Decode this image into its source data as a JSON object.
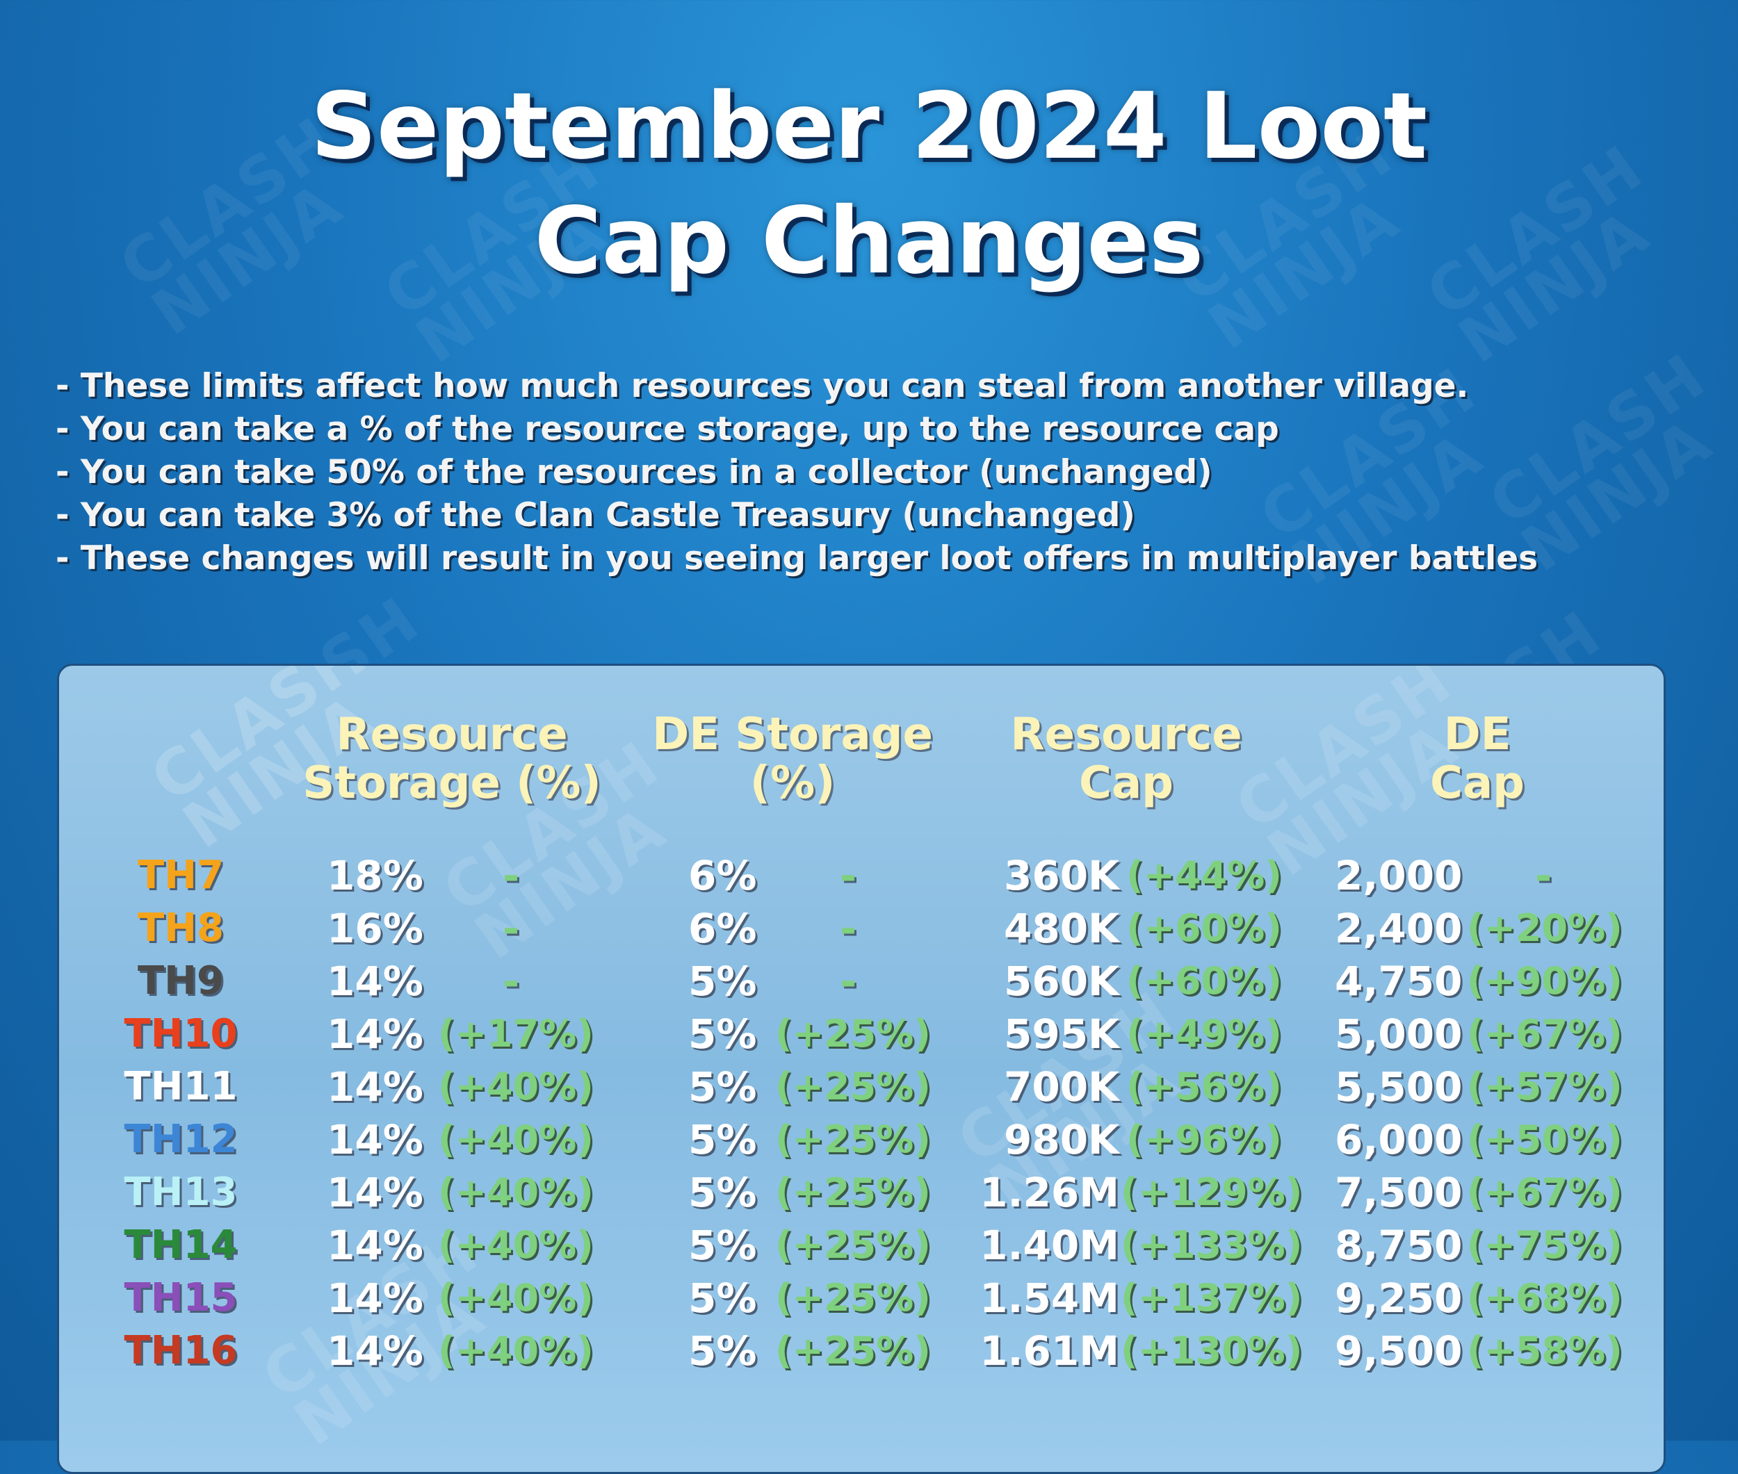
{
  "title": {
    "line1": "September 2024 Loot",
    "line2": "Cap Changes"
  },
  "watermark_text": "CLASH NINJA",
  "notes": [
    "- These limits affect how much resources you can steal from another village.",
    "- You can take a % of the resource storage, up to the resource cap",
    "- You can take 50% of the resources in a collector (unchanged)",
    "- You can take 3% of the Clan Castle Treasury (unchanged)",
    "- These changes will result in you seeing larger loot offers in multiplayer battles"
  ],
  "table": {
    "headers": {
      "resource_storage": [
        "Resource",
        "Storage (%)"
      ],
      "de_storage": [
        "DE Storage",
        "(%)"
      ],
      "resource_cap": [
        "Resource",
        "Cap"
      ],
      "de_cap": [
        "DE",
        "Cap"
      ]
    },
    "rows": [
      {
        "th": "TH7",
        "th_color": "#f5a31a",
        "rs": "18%",
        "rs_change": "-",
        "ds": "6%",
        "ds_change": "-",
        "rc": "360K",
        "rc_change": "(+44%)",
        "dc": "2,000",
        "dc_change": "-"
      },
      {
        "th": "TH8",
        "th_color": "#f5a31a",
        "rs": "16%",
        "rs_change": "-",
        "ds": "6%",
        "ds_change": "-",
        "rc": "480K",
        "rc_change": "(+60%)",
        "dc": "2,400",
        "dc_change": "(+20%)"
      },
      {
        "th": "TH9",
        "th_color": "#4a4a4a",
        "rs": "14%",
        "rs_change": "-",
        "ds": "5%",
        "ds_change": "-",
        "rc": "560K",
        "rc_change": "(+60%)",
        "dc": "4,750",
        "dc_change": "(+90%)"
      },
      {
        "th": "TH10",
        "th_color": "#e8401c",
        "rs": "14%",
        "rs_change": "(+17%)",
        "ds": "5%",
        "ds_change": "(+25%)",
        "rc": "595K",
        "rc_change": "(+49%)",
        "dc": "5,000",
        "dc_change": "(+67%)"
      },
      {
        "th": "TH11",
        "th_color": "#ffffff",
        "rs": "14%",
        "rs_change": "(+40%)",
        "ds": "5%",
        "ds_change": "(+25%)",
        "rc": "700K",
        "rc_change": "(+56%)",
        "dc": "5,500",
        "dc_change": "(+57%)"
      },
      {
        "th": "TH12",
        "th_color": "#3d86d6",
        "rs": "14%",
        "rs_change": "(+40%)",
        "ds": "5%",
        "ds_change": "(+25%)",
        "rc": "980K",
        "rc_change": "(+96%)",
        "dc": "6,000",
        "dc_change": "(+50%)"
      },
      {
        "th": "TH13",
        "th_color": "#b9f1f6",
        "rs": "14%",
        "rs_change": "(+40%)",
        "ds": "5%",
        "ds_change": "(+25%)",
        "rc": "1.26M",
        "rc_change": "(+129%)",
        "dc": "7,500",
        "dc_change": "(+67%)"
      },
      {
        "th": "TH14",
        "th_color": "#2a8a3a",
        "rs": "14%",
        "rs_change": "(+40%)",
        "ds": "5%",
        "ds_change": "(+25%)",
        "rc": "1.40M",
        "rc_change": "(+133%)",
        "dc": "8,750",
        "dc_change": "(+75%)"
      },
      {
        "th": "TH15",
        "th_color": "#8a4fb8",
        "rs": "14%",
        "rs_change": "(+40%)",
        "ds": "5%",
        "ds_change": "(+25%)",
        "rc": "1.54M",
        "rc_change": "(+137%)",
        "dc": "9,250",
        "dc_change": "(+68%)"
      },
      {
        "th": "TH16",
        "th_color": "#c43a22",
        "rs": "14%",
        "rs_change": "(+40%)",
        "ds": "5%",
        "ds_change": "(+25%)",
        "rc": "1.61M",
        "rc_change": "(+130%)",
        "dc": "9,500",
        "dc_change": "(+58%)"
      }
    ]
  }
}
